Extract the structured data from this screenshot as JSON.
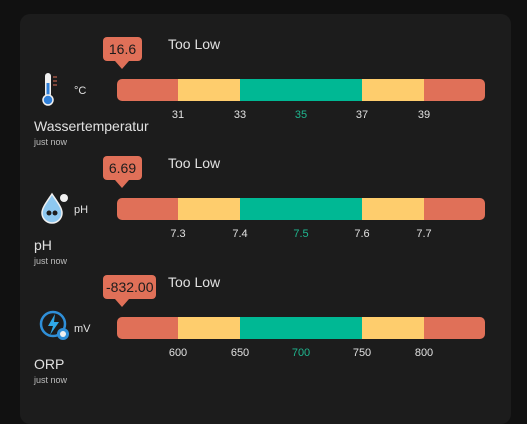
{
  "rows": [
    {
      "value": "16.6",
      "status": "Too Low",
      "unit": "°C",
      "name": "Wassertemperatur",
      "updated": "just now",
      "ticks": [
        "31",
        "33",
        "35",
        "37",
        "39"
      ]
    },
    {
      "value": "6.69",
      "status": "Too Low",
      "unit": "pH",
      "name": "pH",
      "updated": "just now",
      "ticks": [
        "7.3",
        "7.4",
        "7.5",
        "7.6",
        "7.7"
      ]
    },
    {
      "value": "-832.00",
      "status": "Too Low",
      "unit": "mV",
      "name": "ORP",
      "updated": "just now",
      "ticks": [
        "600",
        "650",
        "700",
        "750",
        "800"
      ]
    }
  ]
}
